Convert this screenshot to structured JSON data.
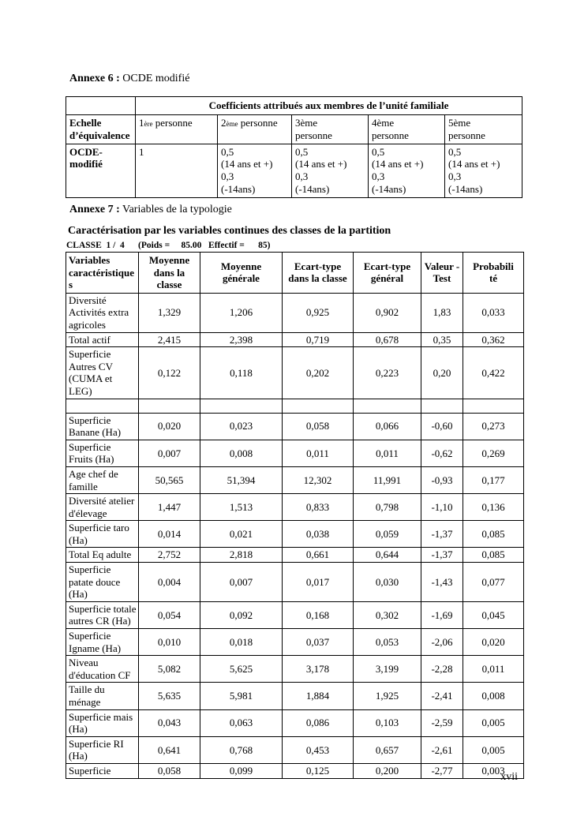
{
  "page": {
    "number": "xvii"
  },
  "annexe6": {
    "heading": {
      "label": "Annexe 6 :",
      "text": " OCDE modifié"
    },
    "table": {
      "span_header": "Coefficients attribués aux membres de l’unité familiale",
      "row2_label": "Echelle d’équivalence",
      "persons": [
        {
          "num": "1",
          "ord": "ère",
          "rest": " personne"
        },
        {
          "num": "2",
          "ord": "ème",
          "rest": " personne"
        },
        {
          "num": "3",
          "ord": "ème",
          "rest": "\npersonne"
        },
        {
          "num": "4",
          "ord": "ème",
          "rest": "\npersonne"
        },
        {
          "num": "5",
          "ord": "ème",
          "rest": "\npersonne"
        }
      ],
      "row3_label": "OCDE-modifié",
      "row3_values": [
        "1",
        "0,5\n(14 ans et +)\n0,3\n(-14ans)",
        "0,5\n(14 ans et +)\n0,3\n(-14ans)",
        "0,5\n(14 ans et +)\n0,3\n(-14ans)",
        "0,5\n(14 ans et +)\n0,3\n(-14ans)"
      ]
    }
  },
  "annexe7": {
    "heading": {
      "label": "Annexe 7 :",
      "text": " Variables de la typologie"
    },
    "subtitle": "Caractérisation par les variables continues des classes de la partition",
    "classe_line": "CLASSE  1 /  4      (Poids =     85.00   Effectif =      85)",
    "table": {
      "headers": [
        "Variables caractéristiques",
        "Moyenne dans la classe",
        "Moyenne générale",
        "Ecart-type dans la classe",
        "Ecart-type général",
        "Valeur -Test",
        "Probabilité"
      ],
      "rows": [
        {
          "label": "Diversité Activités extra agricoles",
          "values": [
            "1,329",
            "1,206",
            "0,925",
            "0,902",
            "1,83",
            "0,033"
          ]
        },
        {
          "label": "Total actif",
          "values": [
            "2,415",
            "2,398",
            "0,719",
            "0,678",
            "0,35",
            "0,362"
          ]
        },
        {
          "label": "Superficie Autres CV (CUMA et LEG)",
          "values": [
            "0,122",
            "0,118",
            "0,202",
            "0,223",
            "0,20",
            "0,422"
          ]
        },
        {
          "label": "",
          "values": [
            "",
            "",
            "",
            "",
            "",
            ""
          ]
        },
        {
          "label": "Superficie Banane (Ha)",
          "values": [
            "0,020",
            "0,023",
            "0,058",
            "0,066",
            "-0,60",
            "0,273"
          ]
        },
        {
          "label": "Superficie Fruits (Ha)",
          "values": [
            "0,007",
            "0,008",
            "0,011",
            "0,011",
            "-0,62",
            "0,269"
          ]
        },
        {
          "label": "Age chef de famille",
          "values": [
            "50,565",
            "51,394",
            "12,302",
            "11,991",
            "-0,93",
            "0,177"
          ]
        },
        {
          "label": "Diversité atelier d'élevage",
          "values": [
            "1,447",
            "1,513",
            "0,833",
            "0,798",
            "-1,10",
            "0,136"
          ]
        },
        {
          "label": "Superficie taro (Ha)",
          "values": [
            "0,014",
            "0,021",
            "0,038",
            "0,059",
            "-1,37",
            "0,085"
          ]
        },
        {
          "label": "Total Eq adulte",
          "values": [
            "2,752",
            "2,818",
            "0,661",
            "0,644",
            "-1,37",
            "0,085"
          ]
        },
        {
          "label": "Superficie patate douce (Ha)",
          "values": [
            "0,004",
            "0,007",
            "0,017",
            "0,030",
            "-1,43",
            "0,077"
          ]
        },
        {
          "label": "Superficie totale autres CR (Ha)",
          "values": [
            "0,054",
            "0,092",
            "0,168",
            "0,302",
            "-1,69",
            "0,045"
          ]
        },
        {
          "label": "Superficie Igname (Ha)",
          "values": [
            "0,010",
            "0,018",
            "0,037",
            "0,053",
            "-2,06",
            "0,020"
          ]
        },
        {
          "label": "Niveau d'éducation CF",
          "values": [
            "5,082",
            "5,625",
            "3,178",
            "3,199",
            "-2,28",
            "0,011"
          ]
        },
        {
          "label": "Taille du ménage",
          "values": [
            "5,635",
            "5,981",
            "1,884",
            "1,925",
            "-2,41",
            "0,008"
          ]
        },
        {
          "label": "Superficie mais (Ha)",
          "values": [
            "0,043",
            "0,063",
            "0,086",
            "0,103",
            "-2,59",
            "0,005"
          ]
        },
        {
          "label": "Superficie RI (Ha)",
          "values": [
            "0,641",
            "0,768",
            "0,453",
            "0,657",
            "-2,61",
            "0,005"
          ]
        },
        {
          "label": "Superficie",
          "values": [
            "0,058",
            "0,099",
            "0,125",
            "0,200",
            "-2,77",
            "0,003"
          ]
        }
      ]
    }
  }
}
